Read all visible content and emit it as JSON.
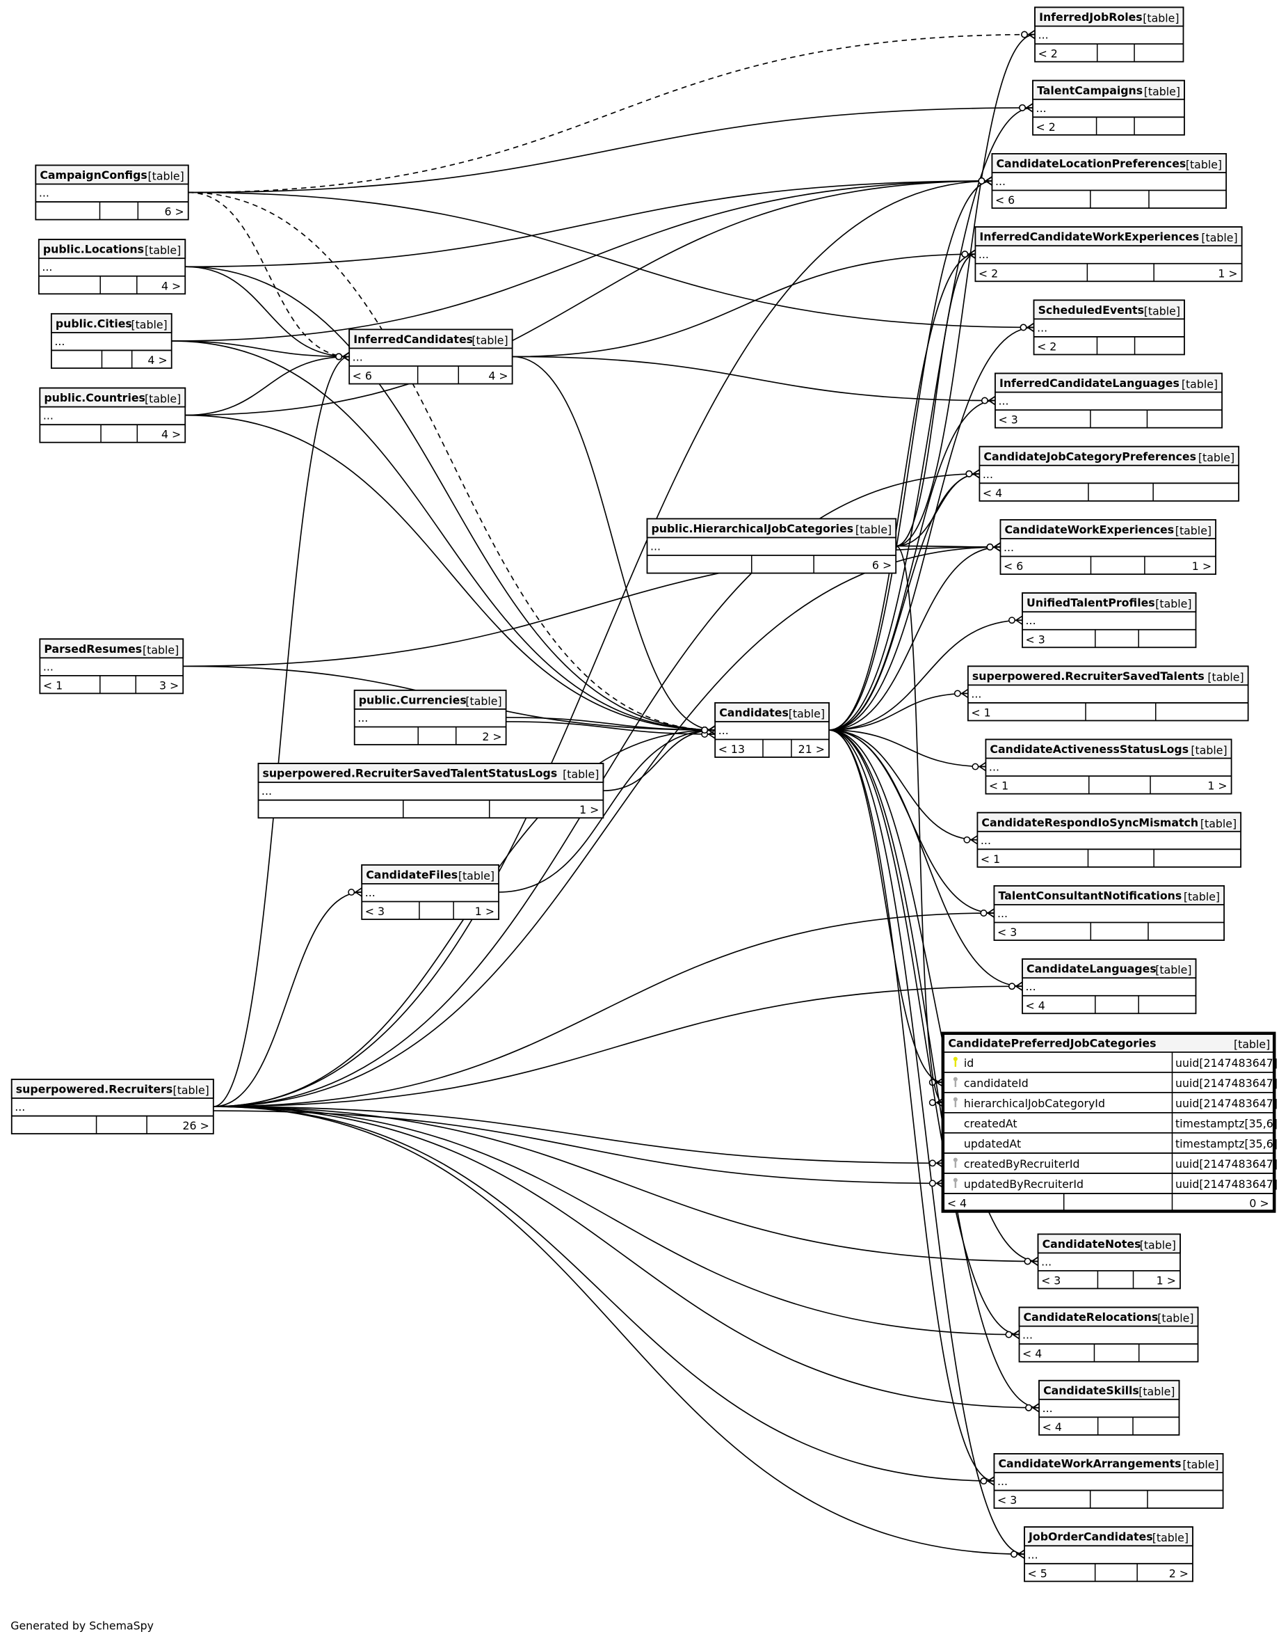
{
  "footer": "Generated by SchemaSpy",
  "tables": [
    {
      "name": "InferredJobRoles",
      "type": "[table]",
      "body": "...",
      "left": "< 2",
      "right": ""
    },
    {
      "name": "TalentCampaigns",
      "type": "[table]",
      "body": "...",
      "left": "< 2",
      "right": ""
    },
    {
      "name": "CandidateLocationPreferences",
      "type": "[table]",
      "body": "...",
      "left": "< 6",
      "right": ""
    },
    {
      "name": "InferredCandidateWorkExperiences",
      "type": "[table]",
      "body": "...",
      "left": "< 2",
      "right": "1 >"
    },
    {
      "name": "ScheduledEvents",
      "type": "[table]",
      "body": "...",
      "left": "< 2",
      "right": ""
    },
    {
      "name": "InferredCandidateLanguages",
      "type": "[table]",
      "body": "...",
      "left": "< 3",
      "right": ""
    },
    {
      "name": "CandidateJobCategoryPreferences",
      "type": "[table]",
      "body": "...",
      "left": "< 4",
      "right": ""
    },
    {
      "name": "CandidateWorkExperiences",
      "type": "[table]",
      "body": "...",
      "left": "< 6",
      "right": "1 >"
    },
    {
      "name": "UnifiedTalentProfiles",
      "type": "[table]",
      "body": "...",
      "left": "< 3",
      "right": ""
    },
    {
      "name": "superpowered.RecruiterSavedTalents",
      "type": "[table]",
      "body": "...",
      "left": "< 1",
      "right": ""
    },
    {
      "name": "CandidateActivenessStatusLogs",
      "type": "[table]",
      "body": "...",
      "left": "< 1",
      "right": "1 >"
    },
    {
      "name": "CandidateRespondIoSyncMismatch",
      "type": "[table]",
      "body": "...",
      "left": "< 1",
      "right": ""
    },
    {
      "name": "TalentConsultantNotifications",
      "type": "[table]",
      "body": "...",
      "left": "< 3",
      "right": ""
    },
    {
      "name": "CandidateLanguages",
      "type": "[table]",
      "body": "...",
      "left": "< 4",
      "right": ""
    },
    {
      "name": "CandidateNotes",
      "type": "[table]",
      "body": "...",
      "left": "< 3",
      "right": "1 >"
    },
    {
      "name": "CandidateRelocations",
      "type": "[table]",
      "body": "...",
      "left": "< 4",
      "right": ""
    },
    {
      "name": "CandidateSkills",
      "type": "[table]",
      "body": "...",
      "left": "< 4",
      "right": ""
    },
    {
      "name": "CandidateWorkArrangements",
      "type": "[table]",
      "body": "...",
      "left": "< 3",
      "right": ""
    },
    {
      "name": "JobOrderCandidates",
      "type": "[table]",
      "body": "...",
      "left": "< 5",
      "right": "2 >"
    },
    {
      "name": "CampaignConfigs",
      "type": "[table]",
      "body": "...",
      "left": "",
      "right": "6 >"
    },
    {
      "name": "public.Locations",
      "type": "[table]",
      "body": "...",
      "left": "",
      "right": "4 >"
    },
    {
      "name": "public.Cities",
      "type": "[table]",
      "body": "...",
      "left": "",
      "right": "4 >"
    },
    {
      "name": "public.Countries",
      "type": "[table]",
      "body": "...",
      "left": "",
      "right": "4 >"
    },
    {
      "name": "InferredCandidates",
      "type": "[table]",
      "body": "...",
      "left": "< 6",
      "right": "4 >"
    },
    {
      "name": "public.HierarchicalJobCategories",
      "type": "[table]",
      "body": "...",
      "left": "",
      "right": "6 >"
    },
    {
      "name": "ParsedResumes",
      "type": "[table]",
      "body": "...",
      "left": "< 1",
      "right": "3 >"
    },
    {
      "name": "public.Currencies",
      "type": "[table]",
      "body": "...",
      "left": "",
      "right": "2 >"
    },
    {
      "name": "superpowered.RecruiterSavedTalentStatusLogs",
      "type": "[table]",
      "body": "...",
      "left": "",
      "right": "1 >"
    },
    {
      "name": "Candidates",
      "type": "[table]",
      "body": "...",
      "left": "< 13",
      "right": "21 >"
    },
    {
      "name": "CandidateFiles",
      "type": "[table]",
      "body": "...",
      "left": "< 3",
      "right": "1 >"
    },
    {
      "name": "superpowered.Recruiters",
      "type": "[table]",
      "body": "...",
      "left": "",
      "right": "26 >"
    }
  ],
  "focus_table": {
    "name": "CandidatePreferredJobCategories",
    "type": "[table]",
    "columns": [
      {
        "name": "id",
        "type": "uuid[2147483647]",
        "key": "primary-key-icon"
      },
      {
        "name": "candidateId",
        "type": "uuid[2147483647]",
        "key": "foreign-key-icon"
      },
      {
        "name": "hierarchicalJobCategoryId",
        "type": "uuid[2147483647]",
        "key": "foreign-key-icon"
      },
      {
        "name": "createdAt",
        "type": "timestamptz[35,6]",
        "key": ""
      },
      {
        "name": "updatedAt",
        "type": "timestamptz[35,6]",
        "key": ""
      },
      {
        "name": "createdByRecruiterId",
        "type": "uuid[2147483647]",
        "key": "foreign-key-icon"
      },
      {
        "name": "updatedByRecruiterId",
        "type": "uuid[2147483647]",
        "key": "foreign-key-icon"
      }
    ],
    "left": "< 4",
    "right": "0 >",
    "colors": {
      "primary_key": "#e6e600",
      "foreign_key": "#aaaaaa"
    }
  },
  "relationships": [
    {
      "from": "CampaignConfigs",
      "to": "InferredJobRoles",
      "implied": true
    },
    {
      "from": "CampaignConfigs",
      "to": "TalentCampaigns"
    },
    {
      "from": "CampaignConfigs",
      "to": "ScheduledEvents"
    },
    {
      "from": "CampaignConfigs",
      "to": "InferredCandidates",
      "implied": true
    },
    {
      "from": "CampaignConfigs",
      "to": "Candidates",
      "implied": true
    },
    {
      "from": "public.Locations",
      "to": "CandidateLocationPreferences"
    },
    {
      "from": "public.Locations",
      "to": "InferredCandidates"
    },
    {
      "from": "public.Locations",
      "to": "Candidates"
    },
    {
      "from": "public.Cities",
      "to": "CandidateLocationPreferences"
    },
    {
      "from": "public.Cities",
      "to": "InferredCandidates"
    },
    {
      "from": "public.Cities",
      "to": "Candidates"
    },
    {
      "from": "public.Countries",
      "to": "CandidateLocationPreferences"
    },
    {
      "from": "public.Countries",
      "to": "InferredCandidates"
    },
    {
      "from": "public.Countries",
      "to": "Candidates"
    },
    {
      "from": "InferredCandidates",
      "to": "InferredCandidateWorkExperiences"
    },
    {
      "from": "InferredCandidates",
      "to": "InferredCandidateLanguages"
    },
    {
      "from": "InferredCandidates",
      "to": "Candidates"
    },
    {
      "from": "public.HierarchicalJobCategories",
      "to": "InferredJobRoles"
    },
    {
      "from": "public.HierarchicalJobCategories",
      "to": "InferredCandidateWorkExperiences"
    },
    {
      "from": "public.HierarchicalJobCategories",
      "to": "CandidateJobCategoryPreferences"
    },
    {
      "from": "public.HierarchicalJobCategories",
      "to": "CandidateWorkExperiences"
    },
    {
      "from": "public.HierarchicalJobCategories",
      "to": "CandidatePreferredJobCategories"
    },
    {
      "from": "ParsedResumes",
      "to": "Candidates"
    },
    {
      "from": "ParsedResumes",
      "to": "CandidateWorkExperiences"
    },
    {
      "from": "public.Currencies",
      "to": "Candidates"
    },
    {
      "from": "public.Currencies",
      "to": "Candidates"
    },
    {
      "from": "superpowered.RecruiterSavedTalentStatusLogs",
      "to": "Candidates"
    },
    {
      "from": "CandidateFiles",
      "to": "Candidates"
    },
    {
      "from": "Candidates",
      "to": "TalentCampaigns"
    },
    {
      "from": "Candidates",
      "to": "CandidateLocationPreferences"
    },
    {
      "from": "Candidates",
      "to": "InferredCandidateWorkExperiences"
    },
    {
      "from": "Candidates",
      "to": "ScheduledEvents"
    },
    {
      "from": "Candidates",
      "to": "InferredCandidateLanguages"
    },
    {
      "from": "Candidates",
      "to": "CandidateJobCategoryPreferences"
    },
    {
      "from": "Candidates",
      "to": "CandidateWorkExperiences"
    },
    {
      "from": "Candidates",
      "to": "UnifiedTalentProfiles"
    },
    {
      "from": "Candidates",
      "to": "superpowered.RecruiterSavedTalents"
    },
    {
      "from": "Candidates",
      "to": "CandidateActivenessStatusLogs"
    },
    {
      "from": "Candidates",
      "to": "CandidateRespondIoSyncMismatch"
    },
    {
      "from": "Candidates",
      "to": "TalentConsultantNotifications"
    },
    {
      "from": "Candidates",
      "to": "CandidateLanguages"
    },
    {
      "from": "Candidates",
      "to": "CandidatePreferredJobCategories"
    },
    {
      "from": "Candidates",
      "to": "CandidateNotes"
    },
    {
      "from": "Candidates",
      "to": "CandidateRelocations"
    },
    {
      "from": "Candidates",
      "to": "CandidateSkills"
    },
    {
      "from": "Candidates",
      "to": "CandidateWorkArrangements"
    },
    {
      "from": "Candidates",
      "to": "JobOrderCandidates"
    },
    {
      "from": "superpowered.Recruiters",
      "to": "Candidates"
    },
    {
      "from": "superpowered.Recruiters",
      "to": "CandidateFiles"
    },
    {
      "from": "superpowered.Recruiters",
      "to": "InferredCandidates"
    },
    {
      "from": "superpowered.Recruiters",
      "to": "CandidateLocationPreferences"
    },
    {
      "from": "superpowered.Recruiters",
      "to": "CandidateJobCategoryPreferences"
    },
    {
      "from": "superpowered.Recruiters",
      "to": "CandidateWorkExperiences"
    },
    {
      "from": "superpowered.Recruiters",
      "to": "TalentConsultantNotifications"
    },
    {
      "from": "superpowered.Recruiters",
      "to": "CandidateLanguages"
    },
    {
      "from": "superpowered.Recruiters",
      "to": "CandidatePreferredJobCategories"
    },
    {
      "from": "superpowered.Recruiters",
      "to": "CandidatePreferredJobCategories"
    },
    {
      "from": "superpowered.Recruiters",
      "to": "CandidateNotes"
    },
    {
      "from": "superpowered.Recruiters",
      "to": "CandidateRelocations"
    },
    {
      "from": "superpowered.Recruiters",
      "to": "CandidateSkills"
    },
    {
      "from": "superpowered.Recruiters",
      "to": "CandidateWorkArrangements"
    },
    {
      "from": "superpowered.Recruiters",
      "to": "JobOrderCandidates"
    }
  ]
}
